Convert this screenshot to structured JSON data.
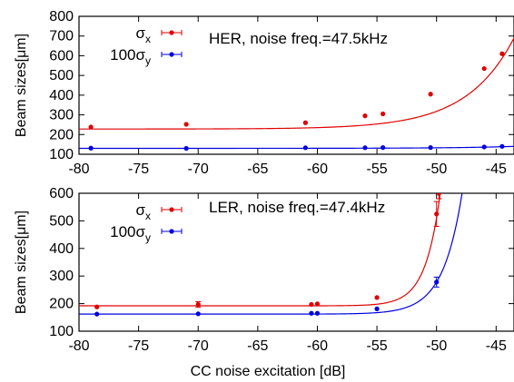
{
  "chart_data": [
    {
      "type": "scatter",
      "panel": "top",
      "title": "HER, noise freq.=47.5kHz",
      "xlabel": "",
      "ylabel": "Beam sizes[μm]",
      "xlim": [
        -80,
        -43.5
      ],
      "ylim": [
        100,
        800
      ],
      "xticks": [
        "-80",
        "-75",
        "-70",
        "-65",
        "-60",
        "-55",
        "-50",
        "-45"
      ],
      "yticks": [
        "100",
        "200",
        "300",
        "400",
        "500",
        "600",
        "700",
        "800"
      ],
      "grid": false,
      "legend_position": "top-left",
      "series": [
        {
          "name": "σx",
          "legend_main": "σ",
          "legend_sub": "x",
          "color": "#e00000",
          "points": [
            {
              "x": -79,
              "y": 238
            },
            {
              "x": -71,
              "y": 252
            },
            {
              "x": -61,
              "y": 260
            },
            {
              "x": -56,
              "y": 295
            },
            {
              "x": -54.5,
              "y": 305
            },
            {
              "x": -50.5,
              "y": 405
            },
            {
              "x": -46,
              "y": 535
            },
            {
              "x": -44.5,
              "y": 610
            }
          ],
          "fit": {
            "model": "exponential",
            "base": 228,
            "amp": 462,
            "x0": -43.5,
            "k": 0.252
          }
        },
        {
          "name": "100σy",
          "legend_main": "100σ",
          "legend_sub": "y",
          "color": "#0000e0",
          "points": [
            {
              "x": -79,
              "y": 131
            },
            {
              "x": -71,
              "y": 130
            },
            {
              "x": -61,
              "y": 133
            },
            {
              "x": -56,
              "y": 133
            },
            {
              "x": -54.5,
              "y": 134
            },
            {
              "x": -50.5,
              "y": 134
            },
            {
              "x": -46,
              "y": 137
            },
            {
              "x": -44.5,
              "y": 140
            }
          ],
          "fit": {
            "model": "exponential",
            "base": 130,
            "amp": 10,
            "x0": -43.5,
            "k": 0.2
          }
        }
      ]
    },
    {
      "type": "scatter",
      "panel": "bottom",
      "title": "LER, noise freq.=47.4kHz",
      "xlabel": "CC noise excitation [dB]",
      "ylabel": "Beam sizes[μm]",
      "xlim": [
        -80,
        -43.5
      ],
      "ylim": [
        100,
        600
      ],
      "xticks": [
        "-80",
        "-75",
        "-70",
        "-65",
        "-60",
        "-55",
        "-50",
        "-45"
      ],
      "yticks": [
        "100",
        "200",
        "300",
        "400",
        "500",
        "600"
      ],
      "grid": false,
      "legend_position": "top-left",
      "series": [
        {
          "name": "σx",
          "legend_main": "σ",
          "legend_sub": "x",
          "color": "#e00000",
          "points": [
            {
              "x": -78.5,
              "y": 188,
              "err": 5
            },
            {
              "x": -70,
              "y": 197,
              "err": 10
            },
            {
              "x": -60.5,
              "y": 197,
              "err": 5
            },
            {
              "x": -60,
              "y": 199,
              "err": 4
            },
            {
              "x": -55,
              "y": 222,
              "err": 5
            },
            {
              "x": -50,
              "y": 525,
              "err": 45
            },
            {
              "x": -49.8,
              "y": 600,
              "err": 20
            }
          ],
          "fit": {
            "model": "exponential",
            "base": 192,
            "amp": 318,
            "x0": -50,
            "k": 0.8
          }
        },
        {
          "name": "100σy",
          "legend_main": "100σ",
          "legend_sub": "y",
          "color": "#0000e0",
          "points": [
            {
              "x": -78.5,
              "y": 162,
              "err": 3
            },
            {
              "x": -70,
              "y": 163,
              "err": 3
            },
            {
              "x": -60.5,
              "y": 165,
              "err": 3
            },
            {
              "x": -60,
              "y": 165,
              "err": 3
            },
            {
              "x": -55,
              "y": 181,
              "err": 3
            },
            {
              "x": -50,
              "y": 278,
              "err": 18
            }
          ],
          "fit": {
            "model": "exponential",
            "base": 162,
            "amp": 116,
            "x0": -50,
            "k": 0.62
          }
        }
      ]
    }
  ]
}
